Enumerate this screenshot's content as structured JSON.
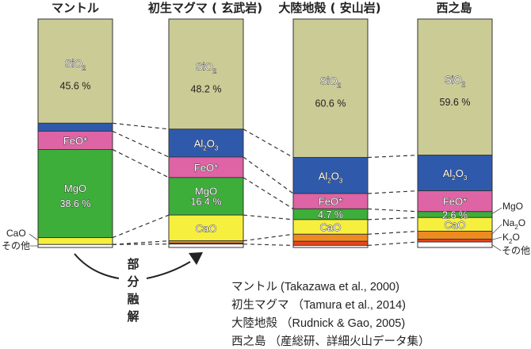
{
  "chart_data": {
    "type": "bar",
    "stacked": true,
    "unit": "wt %",
    "ylim": [
      0,
      100
    ],
    "categories": [
      "マントル",
      "初生マグマ ( 玄武岩)",
      "大陸地殻 ( 安山岩)",
      "西之島"
    ],
    "components": [
      "SiO2",
      "Al2O3",
      "FeO*",
      "MgO",
      "CaO",
      "Na2O",
      "K2O",
      "その他"
    ],
    "colors": {
      "SiO2": "#cbcb96",
      "Al2O3": "#2f5aac",
      "FeO*": "#de64a5",
      "MgO": "#3eae3a",
      "CaO": "#f7ef3e",
      "Na2O": "#ef8a22",
      "K2O": "#e4461f",
      "その他": "#ffffff"
    },
    "series": [
      {
        "name": "マントル",
        "values": {
          "SiO2": 45.6,
          "Al2O3": 3.5,
          "FeO*": 8.0,
          "MgO": 38.6,
          "CaO": 3.0,
          "Na2O": 0,
          "K2O": 0,
          "その他": 1.3
        }
      },
      {
        "name": "初生マグマ ( 玄武岩)",
        "values": {
          "SiO2": 48.2,
          "Al2O3": 12.2,
          "FeO*": 9.0,
          "MgO": 16.4,
          "CaO": 11.3,
          "Na2O": 1.0,
          "K2O": 0.4,
          "その他": 1.5
        }
      },
      {
        "name": "大陸地殻 ( 安山岩)",
        "values": {
          "SiO2": 60.6,
          "Al2O3": 15.8,
          "FeO*": 6.7,
          "MgO": 4.7,
          "CaO": 6.4,
          "Na2O": 3.1,
          "K2O": 1.8,
          "その他": 0.9
        }
      },
      {
        "name": "西之島",
        "values": {
          "SiO2": 59.6,
          "Al2O3": 15.6,
          "FeO*": 9.1,
          "MgO": 2.6,
          "CaO": 6.0,
          "Na2O": 3.5,
          "K2O": 1.2,
          "その他": 2.4
        }
      }
    ],
    "segment_labels": {
      "SiO2": {
        "main": "SiO",
        "sub": "2"
      },
      "Al2O3": {
        "main1": "Al",
        "sub1": "2",
        "main2": "O",
        "sub2": "3"
      },
      "FeO*": "FeO*",
      "MgO": "MgO",
      "CaO": "CaO"
    },
    "percent_labels": {
      "マントル": {
        "SiO2": "45.6 %",
        "MgO": "38.6 %"
      },
      "初生マグマ ( 玄武岩)": {
        "SiO2": "48.2 %",
        "MgO": "16.4 %"
      },
      "大陸地殻 ( 安山岩)": {
        "SiO2": "60.6 %",
        "MgO": "4.7 %"
      },
      "西之島": {
        "SiO2": "59.6 %",
        "MgO": "2.6 %"
      }
    },
    "side_labels_left": [
      "CaO",
      "その他"
    ],
    "side_labels_right": {
      "MgO": "MgO",
      "Na2O": {
        "main": "Na",
        "sub": "2",
        "tail": "O"
      },
      "K2O": {
        "main": "K",
        "sub": "2",
        "tail": "O"
      },
      "その他": "その他"
    },
    "annotation_process": [
      "部",
      "分",
      "融",
      "解"
    ],
    "sources": [
      "マントル (Takazawa et al., 2000)",
      "初生マグマ （Tamura et al., 2014)",
      "大陸地殻 （Rudnick & Gao, 2005)",
      "西之島 （産総研、詳細火山データ集）"
    ]
  }
}
